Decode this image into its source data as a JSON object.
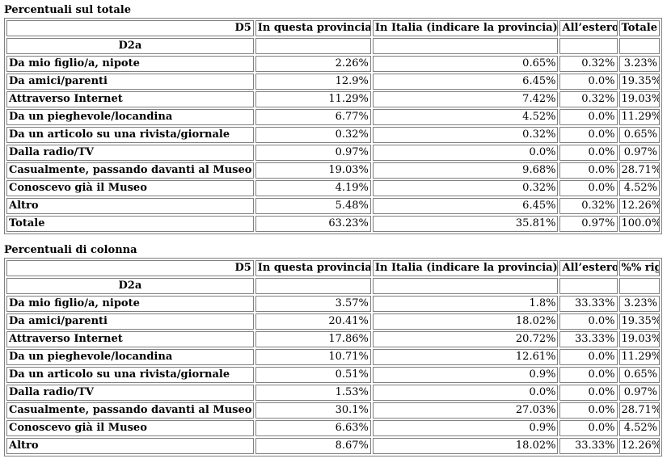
{
  "tables": [
    {
      "caption": "Percentuali sul totale",
      "header": {
        "corner": "D5",
        "columns": [
          "In questa provincia",
          "In Italia (indicare la provincia)",
          "All’estero",
          "Totale"
        ]
      },
      "subheader": "D2a",
      "rows": [
        {
          "label": "Da mio figlio/a, nipote",
          "values": [
            "2.26%",
            "0.65%",
            "0.32%",
            "3.23%"
          ]
        },
        {
          "label": "Da amici/parenti",
          "values": [
            "12.9%",
            "6.45%",
            "0.0%",
            "19.35%"
          ]
        },
        {
          "label": "Attraverso Internet",
          "values": [
            "11.29%",
            "7.42%",
            "0.32%",
            "19.03%"
          ]
        },
        {
          "label": "Da un pieghevole/locandina",
          "values": [
            "6.77%",
            "4.52%",
            "0.0%",
            "11.29%"
          ]
        },
        {
          "label": "Da un articolo su una rivista/giornale",
          "values": [
            "0.32%",
            "0.32%",
            "0.0%",
            "0.65%"
          ]
        },
        {
          "label": "Dalla radio/TV",
          "values": [
            "0.97%",
            "0.0%",
            "0.0%",
            "0.97%"
          ]
        },
        {
          "label": "Casualmente, passando davanti al Museo",
          "values": [
            "19.03%",
            "9.68%",
            "0.0%",
            "28.71%"
          ]
        },
        {
          "label": "Conoscevo già il Museo",
          "values": [
            "4.19%",
            "0.32%",
            "0.0%",
            "4.52%"
          ]
        },
        {
          "label": "Altro",
          "values": [
            "5.48%",
            "6.45%",
            "0.32%",
            "12.26%"
          ]
        },
        {
          "label": "Totale",
          "values": [
            "63.23%",
            "35.81%",
            "0.97%",
            "100.0%"
          ]
        }
      ]
    },
    {
      "caption": "Percentuali di colonna",
      "header": {
        "corner": "D5",
        "columns": [
          "In questa provincia",
          "In Italia (indicare la provincia)",
          "All’estero",
          "%% riga"
        ]
      },
      "subheader": "D2a",
      "rows": [
        {
          "label": "Da mio figlio/a, nipote",
          "values": [
            "3.57%",
            "1.8%",
            "33.33%",
            "3.23%"
          ]
        },
        {
          "label": "Da amici/parenti",
          "values": [
            "20.41%",
            "18.02%",
            "0.0%",
            "19.35%"
          ]
        },
        {
          "label": "Attraverso Internet",
          "values": [
            "17.86%",
            "20.72%",
            "33.33%",
            "19.03%"
          ]
        },
        {
          "label": "Da un pieghevole/locandina",
          "values": [
            "10.71%",
            "12.61%",
            "0.0%",
            "11.29%"
          ]
        },
        {
          "label": "Da un articolo su una rivista/giornale",
          "values": [
            "0.51%",
            "0.9%",
            "0.0%",
            "0.65%"
          ]
        },
        {
          "label": "Dalla radio/TV",
          "values": [
            "1.53%",
            "0.0%",
            "0.0%",
            "0.97%"
          ]
        },
        {
          "label": "Casualmente, passando davanti al Museo",
          "values": [
            "30.1%",
            "27.03%",
            "0.0%",
            "28.71%"
          ]
        },
        {
          "label": "Conoscevo già il Museo",
          "values": [
            "6.63%",
            "0.9%",
            "0.0%",
            "4.52%"
          ]
        },
        {
          "label": "Altro",
          "values": [
            "8.67%",
            "18.02%",
            "33.33%",
            "12.26%"
          ]
        }
      ]
    }
  ]
}
